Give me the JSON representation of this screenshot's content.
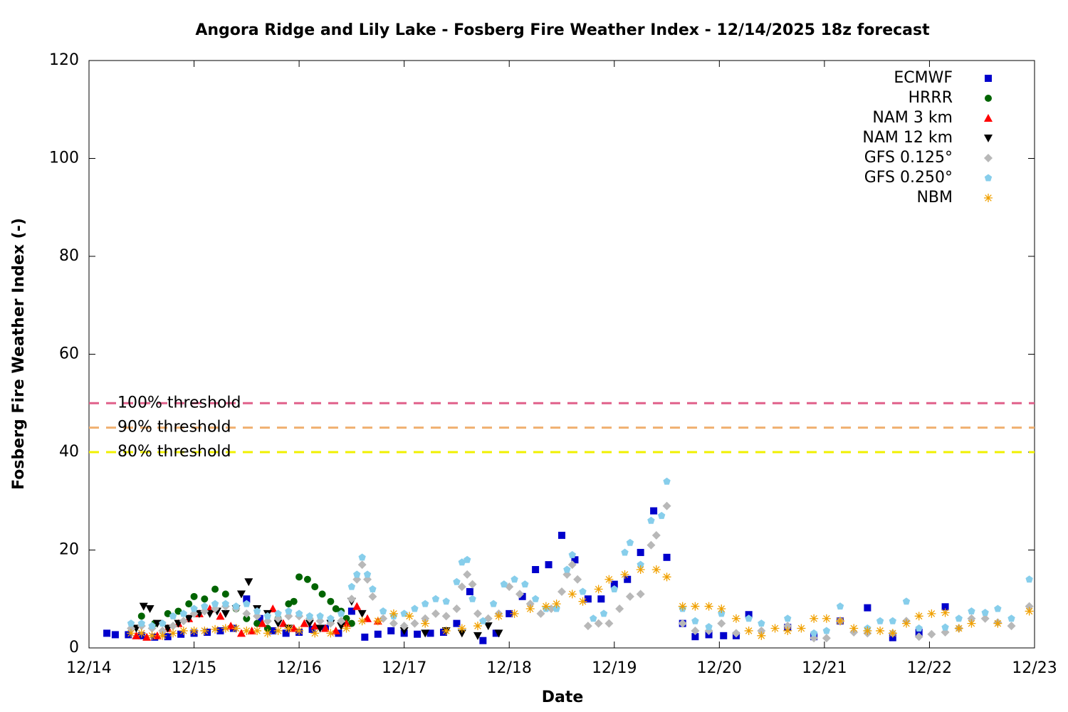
{
  "chart_data": {
    "type": "scatter",
    "title": "Angora Ridge and Lily Lake - Fosberg Fire Weather Index - 12/14/2025 18z forecast",
    "xlabel": "Date",
    "ylabel": "Fosberg Fire Weather Index (-)",
    "xlim": [
      0,
      9
    ],
    "xticks": [
      {
        "value": 0,
        "label": "12/14"
      },
      {
        "value": 1,
        "label": "12/15"
      },
      {
        "value": 2,
        "label": "12/16"
      },
      {
        "value": 3,
        "label": "12/17"
      },
      {
        "value": 4,
        "label": "12/18"
      },
      {
        "value": 5,
        "label": "12/19"
      },
      {
        "value": 6,
        "label": "12/20"
      },
      {
        "value": 7,
        "label": "12/21"
      },
      {
        "value": 8,
        "label": "12/22"
      },
      {
        "value": 9,
        "label": "12/23"
      }
    ],
    "ylim": [
      0,
      120
    ],
    "yticks": [
      0,
      20,
      40,
      60,
      80,
      100,
      120
    ],
    "legend": "upper right",
    "thresholds": [
      {
        "name": "100% threshold",
        "value": 50,
        "color": "#e0608a"
      },
      {
        "name": "90% threshold",
        "value": 45,
        "color": "#f0b070"
      },
      {
        "name": "80% threshold",
        "value": 40,
        "color": "#f0f000"
      }
    ],
    "series": [
      {
        "name": "ECMWF",
        "color": "#0000cc",
        "marker": "square",
        "x": [
          0.17,
          0.25,
          0.375,
          0.5,
          0.625,
          0.75,
          0.875,
          1.0,
          1.125,
          1.25,
          1.375,
          1.5,
          1.625,
          1.75,
          1.875,
          2.0,
          2.125,
          2.25,
          2.375,
          2.5,
          2.625,
          2.75,
          2.875,
          3.0,
          3.125,
          3.25,
          3.375,
          3.5,
          3.625,
          3.75,
          3.875,
          4.0,
          4.125,
          4.25,
          4.375,
          4.5,
          4.625,
          4.75,
          4.875,
          5.0,
          5.125,
          5.25,
          5.375,
          5.5,
          5.65,
          5.77,
          5.9,
          6.04,
          6.16,
          6.28,
          6.65,
          6.9,
          7.15,
          7.41,
          7.65,
          7.9,
          8.15
        ],
        "values": [
          3,
          2.7,
          2.7,
          2.5,
          2.2,
          2.3,
          2.8,
          3,
          3.2,
          3.5,
          4,
          10,
          6,
          3.5,
          3,
          3.2,
          3.8,
          4,
          3,
          7.5,
          2.2,
          2.8,
          3.5,
          3,
          2.8,
          3,
          3.2,
          5,
          11.5,
          1.5,
          3,
          7,
          10.5,
          16,
          17,
          23,
          18,
          10,
          10,
          13,
          14,
          19.5,
          28,
          18.5,
          5,
          2.3,
          2.7,
          2.5,
          2.5,
          6.8,
          4.2,
          2.3,
          5.5,
          8.2,
          2.1,
          3.2,
          8.4
        ]
      },
      {
        "name": "HRRR",
        "color": "#006400",
        "marker": "circle",
        "x": [
          0.5,
          0.625,
          0.75,
          0.85,
          0.95,
          1.0,
          1.1,
          1.2,
          1.3,
          1.4,
          1.5,
          1.6,
          1.7,
          1.8,
          1.9,
          1.95,
          2.0,
          2.08,
          2.15,
          2.22,
          2.3,
          2.35,
          2.4,
          2.45,
          2.5
        ],
        "values": [
          6.5,
          5,
          7,
          7.5,
          9,
          10.5,
          10,
          12,
          11,
          8,
          6,
          5,
          4,
          6,
          9,
          9.5,
          14.5,
          14,
          12.5,
          11,
          9.5,
          8,
          7.5,
          6,
          5
        ]
      },
      {
        "name": "NAM 3 km",
        "color": "#ff0000",
        "marker": "triangle-up",
        "x": [
          0.45,
          0.55,
          0.65,
          0.75,
          0.85,
          0.95,
          1.05,
          1.15,
          1.25,
          1.35,
          1.45,
          1.55,
          1.65,
          1.75,
          1.85,
          1.95,
          2.05,
          2.15,
          2.25,
          2.35,
          2.45,
          2.55,
          2.65,
          2.75
        ],
        "values": [
          2.5,
          2.2,
          2.5,
          4,
          5,
          6,
          7,
          8,
          6.5,
          4.5,
          3,
          3.5,
          5,
          8,
          5,
          4,
          5,
          4.5,
          4,
          3.5,
          5,
          8.5,
          6,
          5.5
        ]
      },
      {
        "name": "NAM 12 km",
        "color": "#000000",
        "marker": "triangle-down",
        "x": [
          0.45,
          0.52,
          0.58,
          0.65,
          0.75,
          0.85,
          0.95,
          1.05,
          1.15,
          1.22,
          1.3,
          1.4,
          1.45,
          1.52,
          1.6,
          1.7,
          1.8,
          1.9,
          2.1,
          2.2,
          2.3,
          2.4,
          2.5,
          2.6,
          3.0,
          3.2,
          3.4,
          3.55,
          3.7,
          3.8,
          3.9
        ],
        "values": [
          4,
          8.5,
          8,
          5,
          4,
          5,
          6,
          7,
          7,
          7.5,
          7,
          8,
          11,
          13.5,
          8,
          7,
          5,
          4,
          5,
          4,
          5,
          4.5,
          9.5,
          7,
          3.5,
          3,
          3.5,
          3,
          2.5,
          4.5,
          3
        ]
      },
      {
        "name": "GFS 0.125°",
        "color": "#b8b8b8",
        "marker": "diamond",
        "x": [
          0.4,
          0.5,
          0.6,
          0.7,
          0.8,
          0.9,
          1.0,
          1.1,
          1.2,
          1.3,
          1.4,
          1.5,
          1.6,
          1.7,
          1.8,
          1.9,
          2.0,
          2.1,
          2.2,
          2.3,
          2.4,
          2.5,
          2.55,
          2.6,
          2.65,
          2.7,
          2.8,
          2.9,
          3.0,
          3.1,
          3.2,
          3.3,
          3.4,
          3.5,
          3.55,
          3.6,
          3.65,
          3.7,
          3.8,
          3.9,
          4.0,
          4.1,
          4.2,
          4.3,
          4.4,
          4.5,
          4.55,
          4.6,
          4.65,
          4.75,
          4.85,
          4.95,
          5.05,
          5.15,
          5.25,
          5.35,
          5.4,
          5.5,
          5.65,
          5.77,
          5.9,
          6.02,
          6.16,
          6.4,
          6.65,
          6.9,
          7.02,
          7.15,
          7.28,
          7.41,
          7.65,
          7.78,
          7.9,
          8.02,
          8.15,
          8.28,
          8.4,
          8.53,
          8.65,
          8.78,
          8.95
        ],
        "values": [
          4,
          4.5,
          4,
          3.5,
          4.5,
          5.5,
          7,
          7.5,
          8,
          8.5,
          8,
          7,
          6.5,
          5.5,
          6,
          6.5,
          6.5,
          6,
          5.5,
          5,
          5.5,
          10,
          14,
          17,
          14,
          10.5,
          6,
          5,
          4.5,
          5,
          6,
          7,
          6.5,
          8,
          12.5,
          15,
          13,
          7,
          6,
          7,
          12.5,
          11,
          9,
          7,
          8,
          11.5,
          15,
          17,
          14,
          4.5,
          5,
          5,
          8,
          10.5,
          11,
          21,
          23,
          29,
          5,
          3.5,
          3.5,
          5,
          3,
          3.5,
          4.5,
          2,
          2,
          5.5,
          3.2,
          3,
          3,
          5.5,
          2.3,
          2.8,
          3.2,
          4,
          6,
          6,
          5.2,
          4.5,
          8.5
        ]
      },
      {
        "name": "GFS 0.250°",
        "color": "#87ceeb",
        "marker": "pentagon",
        "x": [
          0.4,
          0.5,
          0.6,
          0.7,
          0.8,
          0.9,
          1.0,
          1.1,
          1.2,
          1.3,
          1.4,
          1.5,
          1.6,
          1.7,
          1.8,
          1.9,
          2.0,
          2.1,
          2.2,
          2.3,
          2.4,
          2.5,
          2.55,
          2.6,
          2.65,
          2.7,
          2.8,
          2.9,
          3.0,
          3.1,
          3.2,
          3.3,
          3.4,
          3.5,
          3.55,
          3.6,
          3.65,
          3.75,
          3.85,
          3.95,
          4.05,
          4.15,
          4.25,
          4.35,
          4.45,
          4.55,
          4.6,
          4.7,
          4.8,
          4.9,
          5.0,
          5.1,
          5.15,
          5.25,
          5.35,
          5.45,
          5.5,
          5.65,
          5.77,
          5.9,
          6.02,
          6.28,
          6.4,
          6.65,
          6.9,
          7.02,
          7.15,
          7.41,
          7.53,
          7.65,
          7.78,
          7.9,
          8.15,
          8.28,
          8.4,
          8.53,
          8.65,
          8.78,
          8.95
        ],
        "values": [
          5,
          5,
          4.5,
          5,
          6.5,
          7,
          8,
          8.5,
          9,
          9,
          8.5,
          9,
          7.5,
          6.5,
          7,
          7.5,
          7,
          6.5,
          6.5,
          6,
          7,
          12.5,
          15,
          18.5,
          15,
          12,
          7.5,
          6.5,
          7,
          8,
          9,
          10,
          9.5,
          13.5,
          17.5,
          18,
          10,
          5.5,
          9,
          13,
          14,
          13,
          10,
          8,
          8,
          16,
          19,
          11.5,
          6,
          7,
          12,
          19.5,
          21.5,
          17,
          26,
          27,
          34,
          8,
          5.5,
          4.3,
          7,
          6,
          5,
          6,
          3,
          3.5,
          8.5,
          4,
          5.5,
          5.5,
          9.5,
          4,
          4.2,
          6,
          7.5,
          7.2,
          8,
          6,
          14
        ]
      },
      {
        "name": "NBM",
        "color": "#f0a000",
        "marker": "asterisk",
        "x": [
          0.4,
          0.5,
          0.6,
          0.7,
          0.8,
          0.9,
          1.0,
          1.1,
          1.2,
          1.3,
          1.4,
          1.5,
          1.6,
          1.7,
          1.8,
          1.9,
          2.0,
          2.15,
          2.3,
          2.45,
          2.6,
          2.75,
          2.9,
          3.05,
          3.2,
          3.4,
          3.55,
          3.7,
          3.9,
          4.05,
          4.2,
          4.35,
          4.45,
          4.6,
          4.7,
          4.85,
          4.95,
          5.1,
          5.25,
          5.4,
          5.5,
          5.65,
          5.77,
          5.9,
          6.02,
          6.16,
          6.28,
          6.4,
          6.53,
          6.65,
          6.78,
          6.9,
          7.02,
          7.15,
          7.28,
          7.41,
          7.53,
          7.65,
          7.78,
          7.9,
          8.02,
          8.15,
          8.28,
          8.4,
          8.65,
          8.95
        ],
        "values": [
          3,
          3,
          2.5,
          2.5,
          3,
          3.5,
          3.5,
          3.5,
          3.8,
          4,
          4,
          3.5,
          3.5,
          3,
          3.5,
          4,
          3.5,
          3,
          3,
          4,
          5.5,
          5.5,
          7,
          6.5,
          5,
          3.5,
          4,
          4.5,
          6.5,
          7,
          8,
          8.5,
          9,
          11,
          9.5,
          12,
          14,
          15,
          16,
          16,
          14.5,
          8.5,
          8.5,
          8.5,
          8,
          6,
          3.5,
          2.5,
          4,
          3.5,
          4,
          6,
          6,
          5.5,
          4,
          3.5,
          3.5,
          3,
          5,
          6.5,
          7,
          7.2,
          4,
          5,
          5,
          7.5
        ]
      }
    ]
  }
}
